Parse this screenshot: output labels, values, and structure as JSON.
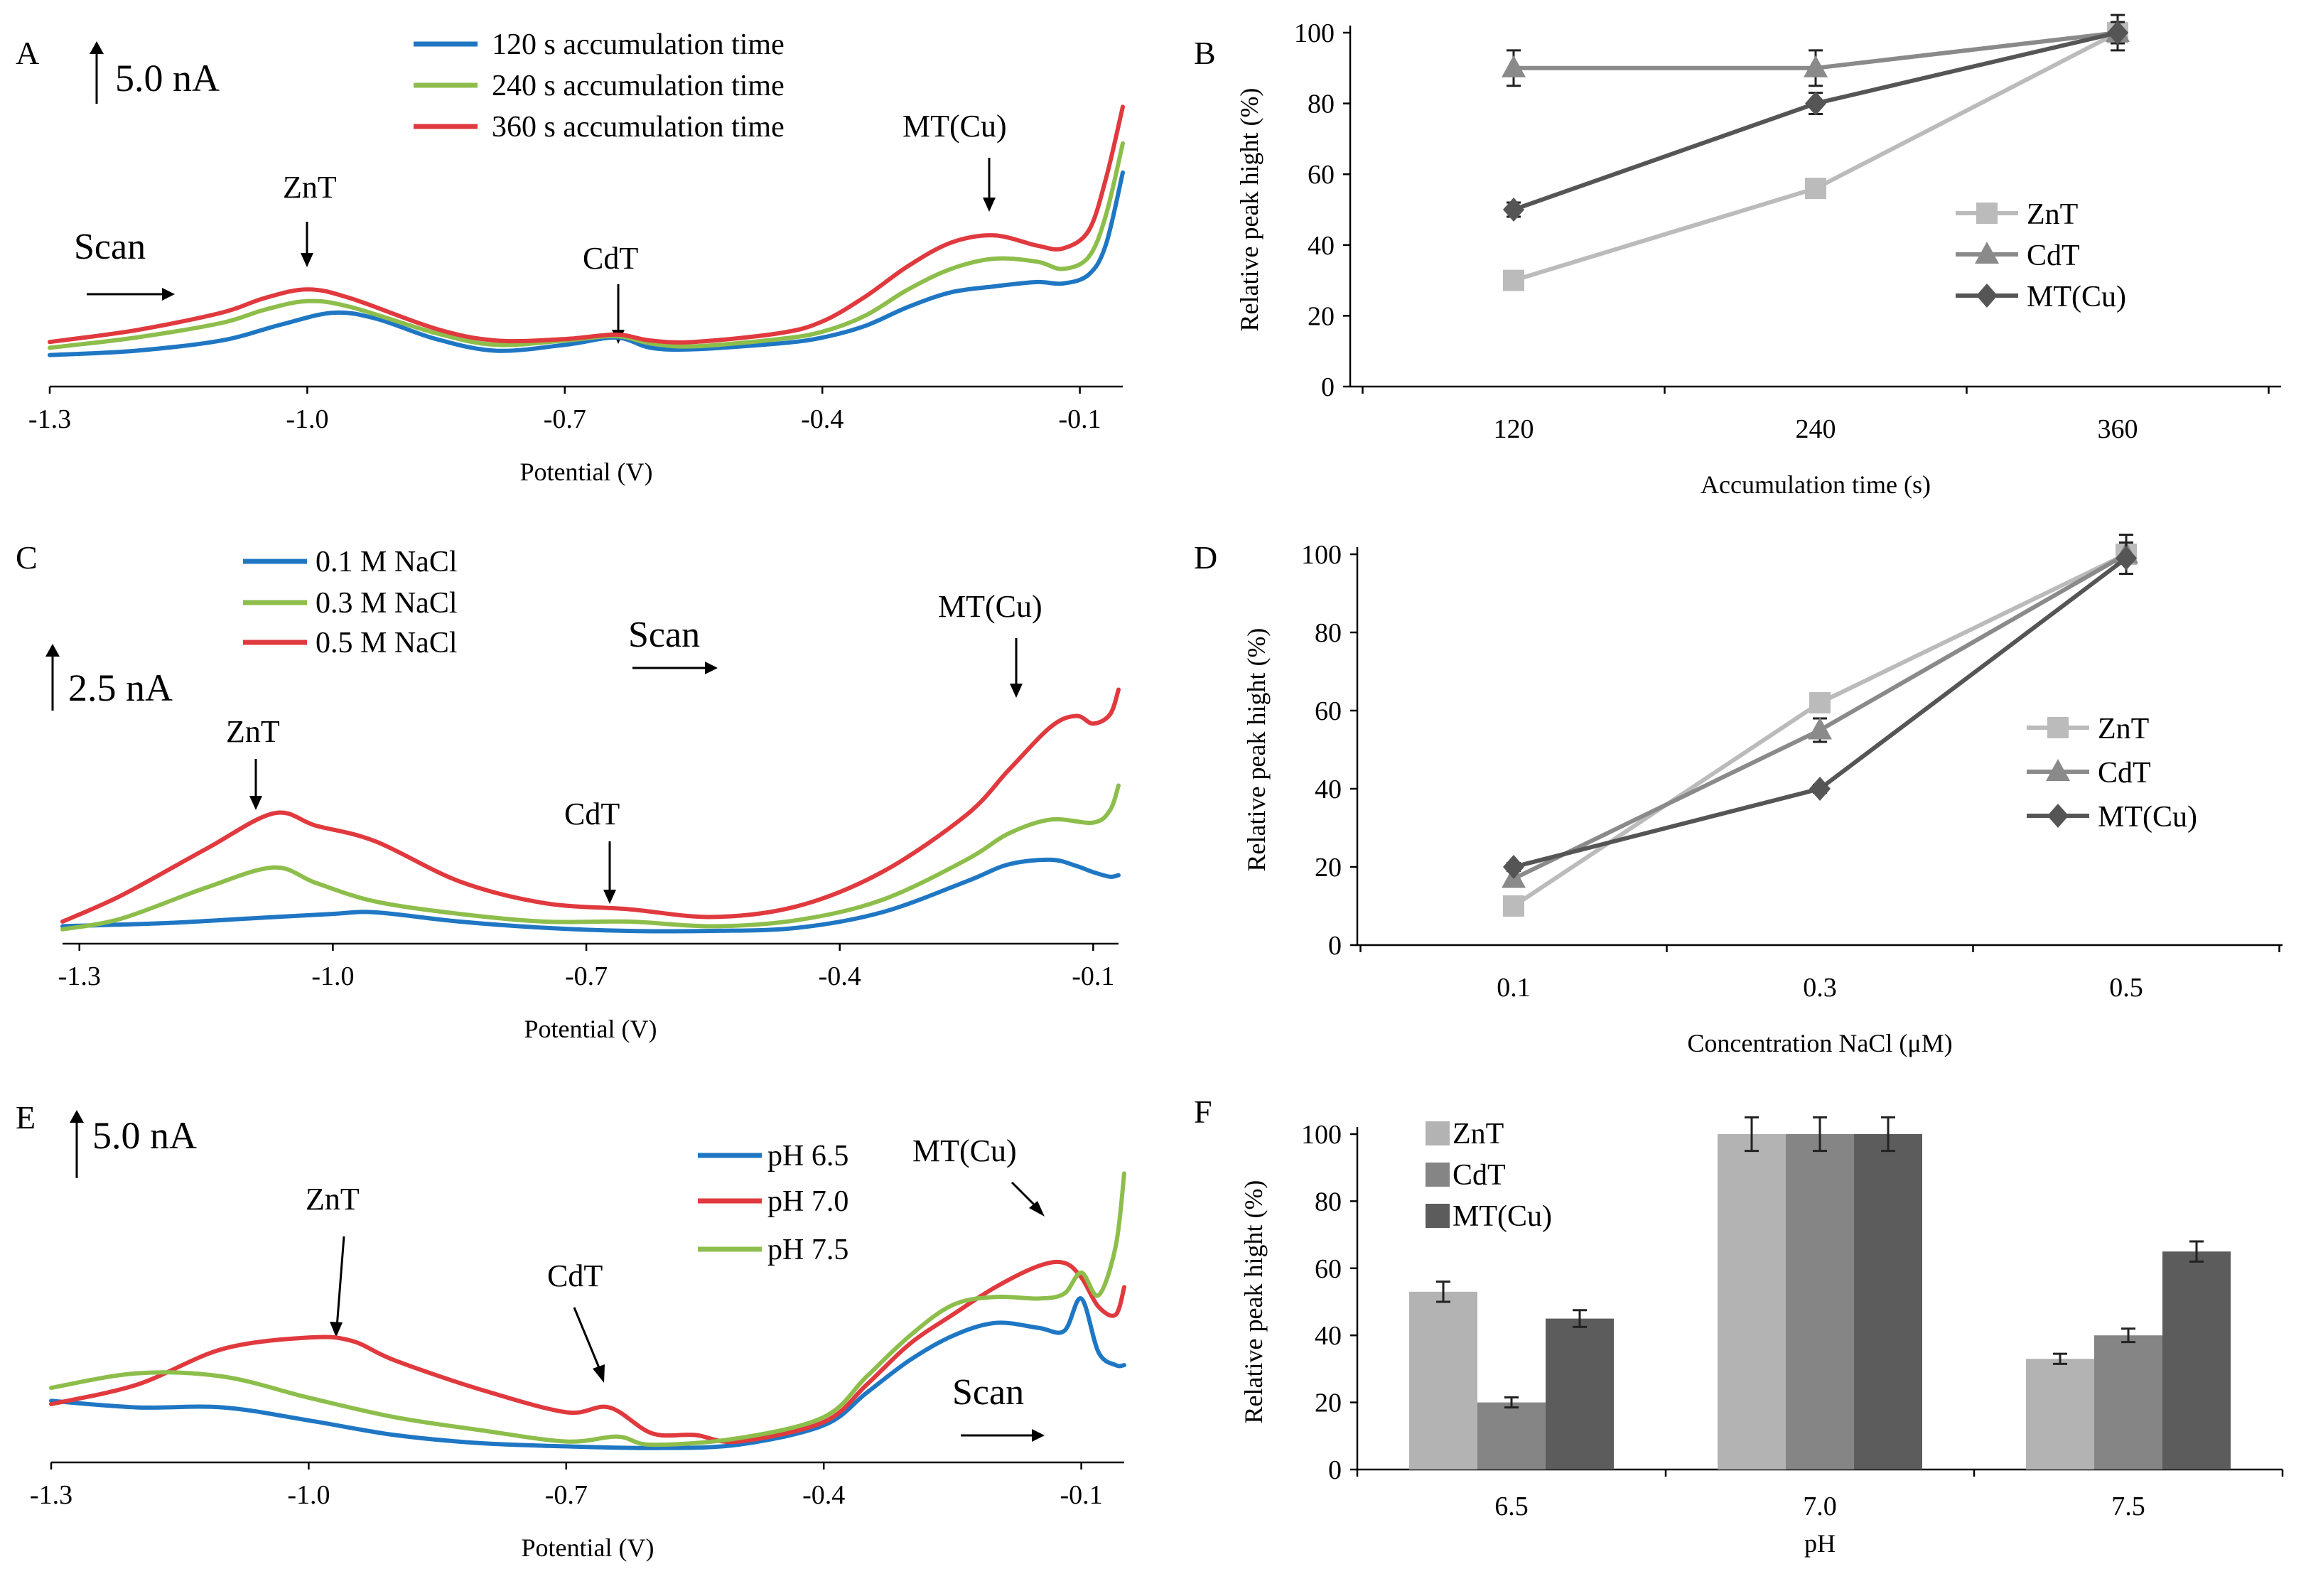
{
  "figure": {
    "panels": [
      "A",
      "B",
      "C",
      "D",
      "E",
      "F"
    ],
    "x_ticks_potential": [
      "-1.3",
      "-1.0",
      "-0.7",
      "-0.4",
      "-0.1"
    ],
    "xlabel_potential": "Potential  (V)",
    "ylabel_relative": "Relative  peak hight   (%)",
    "y_ticks_relative": [
      "0",
      "20",
      "40",
      "60",
      "80",
      "100"
    ],
    "colors": {
      "blue": "#1f77c4",
      "green": "#8dbe4b",
      "red": "#e0393e",
      "zn": "#bbbbbb",
      "cd": "#8a8a8a",
      "mt": "#555555",
      "bar_zn": "#b3b3b3",
      "bar_cd": "#858585",
      "bar_mt": "#5c5c5c"
    }
  },
  "panel_a": {
    "letter": "A",
    "scale": "5.0 nA",
    "scan": "Scan",
    "legend": [
      "120 s  accumulation time",
      "240 s  accumulation time",
      "360 s  accumulation time"
    ],
    "annotations": {
      "znt": "ZnT",
      "cdt": "CdT",
      "mt": "MT(Cu)"
    }
  },
  "panel_c": {
    "letter": "C",
    "scale": "2.5 nA",
    "scan": "Scan",
    "legend": [
      "0.1 M NaCl",
      "0.3 M NaCl",
      "0.5 M NaCl"
    ],
    "annotations": {
      "znt": "ZnT",
      "cdt": "CdT",
      "mt": "MT(Cu)"
    }
  },
  "panel_e": {
    "letter": "E",
    "scale": "5.0 nA",
    "scan": "Scan",
    "legend": [
      "pH 6.5",
      "pH 7.0",
      "pH 7.5"
    ],
    "annotations": {
      "znt": "ZnT",
      "cdt": "CdT",
      "mt": "MT(Cu)"
    }
  },
  "chart_data": [
    {
      "panel": "B",
      "type": "line",
      "title": "",
      "xlabel": "Accumulation  time  (s)",
      "ylabel": "Relative  peak hight   (%)",
      "categories": [
        "120",
        "240",
        "360"
      ],
      "ylim": [
        0,
        100
      ],
      "series": [
        {
          "name": "ZnT",
          "marker": "square",
          "values": [
            30,
            56,
            100
          ],
          "errors": [
            0,
            0,
            0
          ]
        },
        {
          "name": "CdT",
          "marker": "triangle",
          "values": [
            90,
            90,
            100
          ],
          "errors": [
            5,
            5,
            5
          ]
        },
        {
          "name": "MT(Cu)",
          "marker": "diamond",
          "values": [
            50,
            80,
            100
          ],
          "errors": [
            2,
            3,
            3
          ]
        }
      ]
    },
    {
      "panel": "D",
      "type": "line",
      "title": "",
      "xlabel": "Concentration  NaCl (μM)",
      "ylabel": "Relative  peak hight   (%)",
      "categories": [
        "0.1",
        "0.3",
        "0.5"
      ],
      "ylim": [
        0,
        100
      ],
      "series": [
        {
          "name": "ZnT",
          "marker": "square",
          "values": [
            10,
            62,
            100
          ],
          "errors": [
            0,
            0,
            0
          ]
        },
        {
          "name": "CdT",
          "marker": "triangle",
          "values": [
            17,
            55,
            100
          ],
          "errors": [
            0,
            3,
            5
          ]
        },
        {
          "name": "MT(Cu)",
          "marker": "diamond",
          "values": [
            20,
            40,
            99
          ],
          "errors": [
            1,
            1,
            4
          ]
        }
      ]
    },
    {
      "panel": "F",
      "type": "bar",
      "title": "",
      "xlabel": "pH",
      "ylabel": "Relative  peak hight   (%)",
      "categories": [
        "6.5",
        "7.0",
        "7.5"
      ],
      "ylim": [
        0,
        100
      ],
      "series": [
        {
          "name": "ZnT",
          "values": [
            53,
            100,
            33
          ],
          "errors": [
            3,
            5,
            1.5
          ]
        },
        {
          "name": "CdT",
          "values": [
            20,
            100,
            40
          ],
          "errors": [
            1.5,
            5,
            2
          ]
        },
        {
          "name": "MT(Cu)",
          "values": [
            45,
            100,
            65
          ],
          "errors": [
            2.5,
            5,
            3
          ]
        }
      ]
    },
    {
      "panel": "A",
      "type": "line",
      "title": "",
      "xlabel": "Potential  (V)",
      "ylabel": "",
      "xlim": [
        -1.3,
        -0.05
      ],
      "series": [
        {
          "name": "120 s  accumulation time",
          "color": "blue",
          "x": [
            -1.3,
            -1.2,
            -1.1,
            -1.03,
            -0.97,
            -0.92,
            -0.85,
            -0.78,
            -0.7,
            -0.64,
            -0.6,
            -0.55,
            -0.45,
            -0.4,
            -0.35,
            -0.3,
            -0.25,
            -0.2,
            -0.15,
            -0.12,
            -0.09,
            -0.07,
            -0.05
          ],
          "y": [
            0.5,
            0.8,
            1.5,
            2.6,
            3.4,
            3.0,
            1.6,
            0.8,
            1.2,
            1.7,
            1.0,
            0.9,
            1.3,
            1.7,
            2.5,
            3.8,
            4.8,
            5.2,
            5.5,
            5.4,
            6.0,
            8.0,
            13.0
          ]
        },
        {
          "name": "240 s  accumulation time",
          "color": "green",
          "x": [
            -1.3,
            -1.2,
            -1.1,
            -1.05,
            -1.0,
            -0.95,
            -0.85,
            -0.78,
            -0.7,
            -0.64,
            -0.6,
            -0.55,
            -0.45,
            -0.4,
            -0.35,
            -0.3,
            -0.25,
            -0.2,
            -0.15,
            -0.12,
            -0.09,
            -0.07,
            -0.05
          ],
          "y": [
            1.0,
            1.7,
            2.7,
            3.6,
            4.2,
            3.8,
            2.0,
            1.2,
            1.5,
            1.8,
            1.3,
            1.1,
            1.6,
            2.1,
            3.2,
            5.0,
            6.4,
            7.1,
            6.9,
            6.4,
            7.2,
            10.0,
            15.0
          ]
        },
        {
          "name": "360 s  accumulation time",
          "color": "red",
          "x": [
            -1.3,
            -1.2,
            -1.1,
            -1.05,
            -1.0,
            -0.95,
            -0.85,
            -0.78,
            -0.7,
            -0.64,
            -0.6,
            -0.55,
            -0.45,
            -0.4,
            -0.35,
            -0.3,
            -0.25,
            -0.2,
            -0.15,
            -0.12,
            -0.09,
            -0.07,
            -0.05
          ],
          "y": [
            1.4,
            2.2,
            3.4,
            4.4,
            5.0,
            4.4,
            2.3,
            1.5,
            1.6,
            1.9,
            1.5,
            1.4,
            2.0,
            2.8,
            4.5,
            6.6,
            8.2,
            8.7,
            8.0,
            7.8,
            9.0,
            12.5,
            17.5
          ]
        }
      ]
    },
    {
      "panel": "C",
      "type": "line",
      "title": "",
      "xlabel": "Potential  (V)",
      "ylabel": "",
      "xlim": [
        -1.32,
        -0.07
      ],
      "series": [
        {
          "name": "0.1 M NaCl",
          "color": "blue",
          "x": [
            -1.32,
            -1.2,
            -1.1,
            -1.0,
            -0.95,
            -0.85,
            -0.75,
            -0.65,
            -0.55,
            -0.45,
            -0.35,
            -0.25,
            -0.2,
            -0.15,
            -0.12,
            -0.1,
            -0.08,
            -0.07
          ],
          "y": [
            0.3,
            0.5,
            0.8,
            1.1,
            1.2,
            0.6,
            0.2,
            0.0,
            0.0,
            0.2,
            1.2,
            3.2,
            4.3,
            4.6,
            4.2,
            3.8,
            3.5,
            3.6
          ]
        },
        {
          "name": "0.3 M NaCl",
          "color": "green",
          "x": [
            -1.32,
            -1.25,
            -1.15,
            -1.07,
            -1.02,
            -0.95,
            -0.85,
            -0.75,
            -0.65,
            -0.55,
            -0.45,
            -0.35,
            -0.25,
            -0.2,
            -0.15,
            -0.1,
            -0.08,
            -0.07
          ],
          "y": [
            0.1,
            0.8,
            2.8,
            4.1,
            3.1,
            1.9,
            1.1,
            0.6,
            0.6,
            0.3,
            0.7,
            2.0,
            4.6,
            6.3,
            7.2,
            7.0,
            7.8,
            9.4
          ]
        },
        {
          "name": "0.5 M NaCl",
          "color": "red",
          "x": [
            -1.32,
            -1.25,
            -1.15,
            -1.07,
            -1.02,
            -0.95,
            -0.85,
            -0.75,
            -0.65,
            -0.55,
            -0.45,
            -0.35,
            -0.25,
            -0.2,
            -0.15,
            -0.12,
            -0.1,
            -0.08,
            -0.07
          ],
          "y": [
            0.6,
            2.3,
            5.3,
            7.6,
            6.8,
            5.8,
            3.2,
            1.8,
            1.4,
            0.9,
            1.6,
            3.8,
            7.5,
            10.4,
            13.2,
            13.9,
            13.4,
            14.0,
            15.6
          ]
        }
      ]
    },
    {
      "panel": "E",
      "type": "line",
      "title": "",
      "xlabel": "Potential  (V)",
      "ylabel": "",
      "xlim": [
        -1.3,
        -0.05
      ],
      "series": [
        {
          "name": "pH 6.5",
          "color": "blue",
          "x": [
            -1.3,
            -1.2,
            -1.1,
            -1.0,
            -0.9,
            -0.8,
            -0.7,
            -0.6,
            -0.5,
            -0.4,
            -0.35,
            -0.3,
            -0.25,
            -0.2,
            -0.15,
            -0.12,
            -0.1,
            -0.08,
            -0.06,
            -0.05
          ],
          "y": [
            3.0,
            2.6,
            2.6,
            1.8,
            0.9,
            0.4,
            0.2,
            0.1,
            0.3,
            1.5,
            3.5,
            5.5,
            7.0,
            7.8,
            7.5,
            7.3,
            9.3,
            6.0,
            5.2,
            5.2
          ]
        },
        {
          "name": "pH 7.0",
          "color": "red",
          "x": [
            -1.3,
            -1.2,
            -1.1,
            -1.0,
            -0.95,
            -0.9,
            -0.8,
            -0.7,
            -0.65,
            -0.6,
            -0.55,
            -0.5,
            -0.4,
            -0.35,
            -0.3,
            -0.25,
            -0.2,
            -0.15,
            -0.12,
            -0.1,
            -0.08,
            -0.06,
            -0.05
          ],
          "y": [
            2.8,
            4.0,
            6.2,
            6.9,
            6.7,
            5.5,
            3.7,
            2.3,
            2.6,
            1.0,
            0.9,
            0.5,
            1.7,
            4.0,
            6.5,
            8.3,
            10.0,
            11.3,
            11.5,
            10.6,
            8.8,
            8.3,
            10.0
          ]
        },
        {
          "name": "pH 7.5",
          "color": "green",
          "x": [
            -1.3,
            -1.2,
            -1.1,
            -1.0,
            -0.9,
            -0.8,
            -0.7,
            -0.64,
            -0.6,
            -0.5,
            -0.4,
            -0.35,
            -0.3,
            -0.25,
            -0.2,
            -0.15,
            -0.12,
            -0.1,
            -0.08,
            -0.06,
            -0.05
          ],
          "y": [
            3.8,
            4.7,
            4.5,
            3.2,
            2.0,
            1.2,
            0.5,
            0.8,
            0.3,
            0.7,
            2.0,
            4.5,
            7.0,
            8.9,
            9.4,
            9.3,
            9.6,
            10.9,
            9.5,
            12.5,
            17.0
          ]
        }
      ]
    }
  ]
}
